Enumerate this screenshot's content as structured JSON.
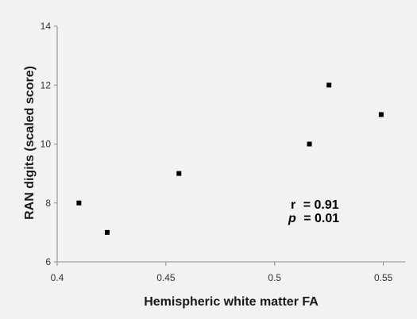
{
  "chart_data": {
    "type": "scatter",
    "title": "",
    "xlabel": "Hemispheric white matter FA",
    "ylabel": "RAN digits (scaled score)",
    "xlim": [
      0.4,
      0.56
    ],
    "ylim": [
      6,
      14
    ],
    "x_ticks": [
      0.4,
      0.45,
      0.5,
      0.55
    ],
    "x_tick_labels": [
      "0.4",
      "0.45",
      "0.5",
      "0.55"
    ],
    "y_ticks": [
      6,
      8,
      10,
      12,
      14
    ],
    "y_tick_labels": [
      "6",
      "8",
      "10",
      "12",
      "14"
    ],
    "points": [
      {
        "x": 0.41,
        "y": 8
      },
      {
        "x": 0.423,
        "y": 7
      },
      {
        "x": 0.456,
        "y": 9
      },
      {
        "x": 0.516,
        "y": 10
      },
      {
        "x": 0.525,
        "y": 12
      },
      {
        "x": 0.549,
        "y": 11
      }
    ],
    "annotation": {
      "r_label": "r",
      "r_value": "= 0.91",
      "p_label": "p",
      "p_value": "= 0.01"
    },
    "grid": false,
    "legend": "none",
    "colors": {
      "marker": "#000000",
      "axis": "#8c8c8c",
      "background": "#f2f2f2"
    }
  }
}
